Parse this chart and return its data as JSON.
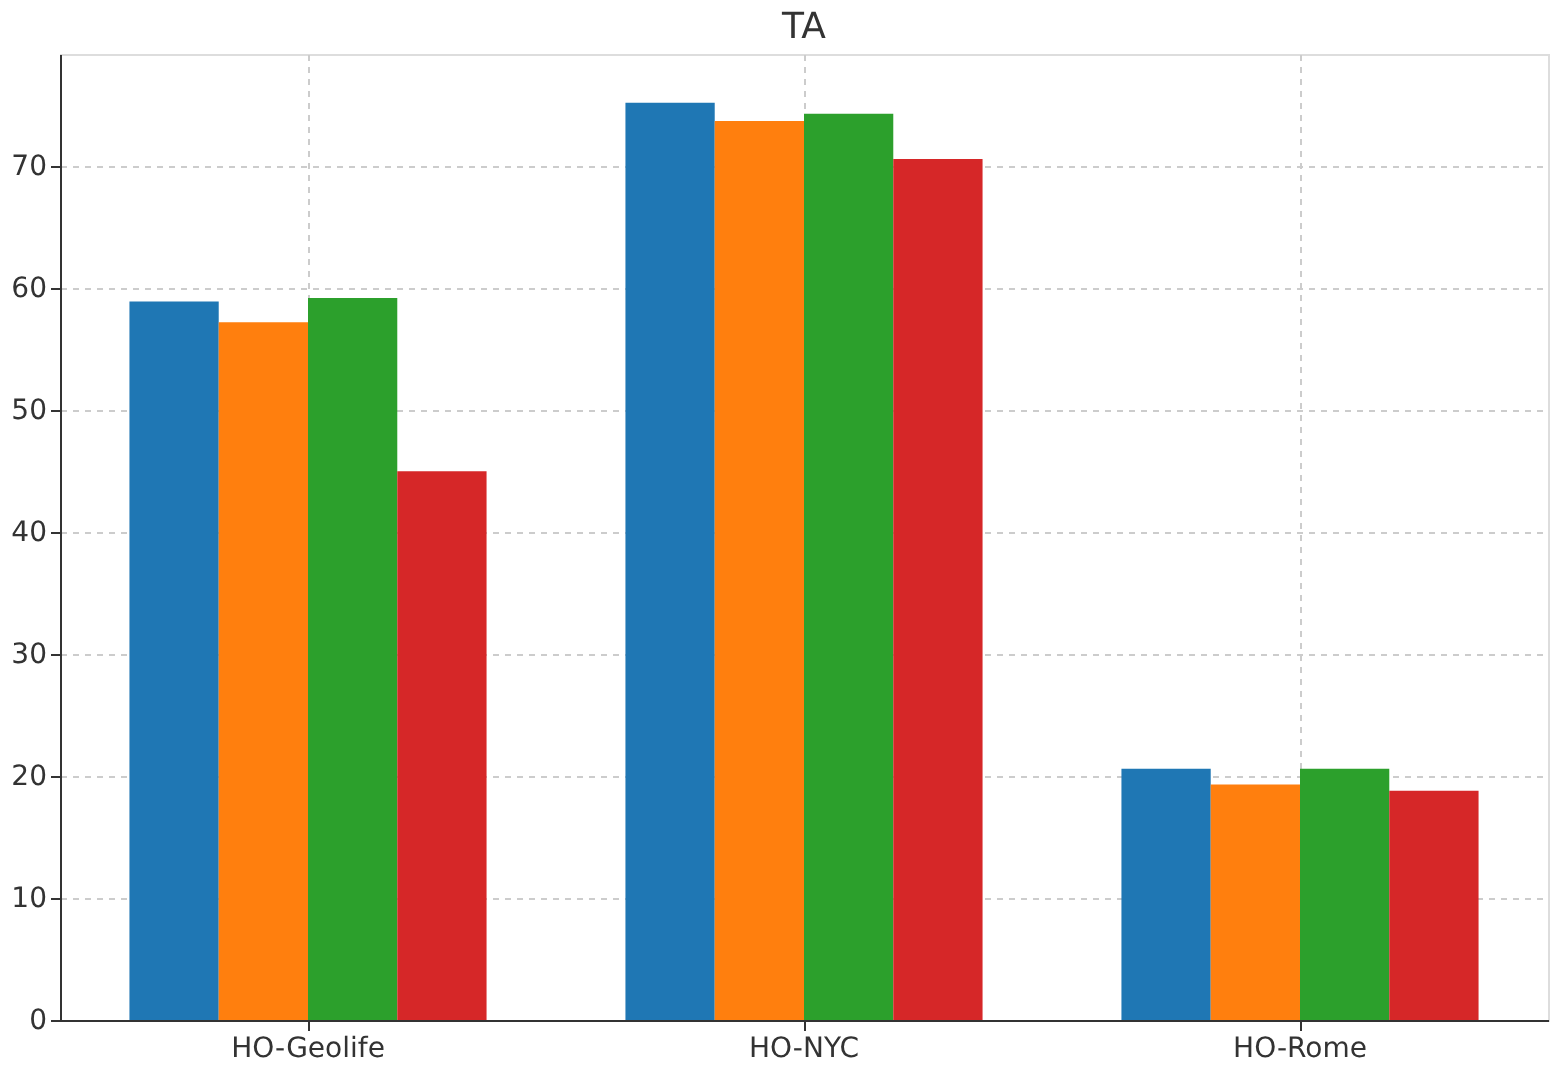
{
  "chart_data": {
    "type": "bar",
    "title": "TA",
    "categories": [
      "HO-Geolife",
      "HO-NYC",
      "HO-Rome"
    ],
    "series": [
      {
        "color": "#1f77b4",
        "values": [
          58.9,
          75.2,
          20.6
        ]
      },
      {
        "color": "#ff7f0e",
        "values": [
          57.2,
          73.7,
          19.3
        ]
      },
      {
        "color": "#2ca02c",
        "values": [
          59.2,
          74.3,
          20.6
        ]
      },
      {
        "color": "#d62728",
        "values": [
          45.0,
          70.6,
          18.8
        ]
      }
    ],
    "ylim": [
      0,
      79.2
    ],
    "yticks": [
      0,
      10,
      20,
      30,
      40,
      50,
      60,
      70
    ],
    "grid": true
  }
}
